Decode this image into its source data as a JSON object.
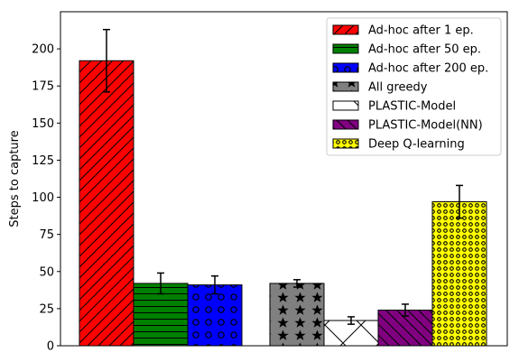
{
  "chart_data": {
    "type": "bar",
    "title": "",
    "xlabel": "",
    "ylabel": "Steps to capture",
    "ylim": [
      0,
      225
    ],
    "yticks": [
      0,
      25,
      50,
      75,
      100,
      125,
      150,
      175,
      200
    ],
    "grid": false,
    "legend_position": "top-right",
    "series": [
      {
        "name": "Ad-hoc after 1 ep.",
        "value": 192,
        "error": 21,
        "color": "#ff0000",
        "hatch": "diagonal"
      },
      {
        "name": "Ad-hoc after 50 ep.",
        "value": 42,
        "error": 7,
        "color": "#008000",
        "hatch": "horizontal"
      },
      {
        "name": "Ad-hoc after 200 ep.",
        "value": 41,
        "error": 6,
        "color": "#0000ff",
        "hatch": "circles"
      },
      {
        "name": "All greedy",
        "value": 42,
        "error": 2.5,
        "color": "#808080",
        "hatch": "stars"
      },
      {
        "name": "PLASTIC-Model",
        "value": 17,
        "error": 2.5,
        "color": "#ffffff",
        "hatch": "cross"
      },
      {
        "name": "PLASTIC-Model(NN)",
        "value": 24,
        "error": 4,
        "color": "#800080",
        "hatch": "backslash"
      },
      {
        "name": "Deep Q-learning",
        "value": 97,
        "error": 11,
        "color": "#ffff00",
        "hatch": "dots"
      }
    ]
  }
}
